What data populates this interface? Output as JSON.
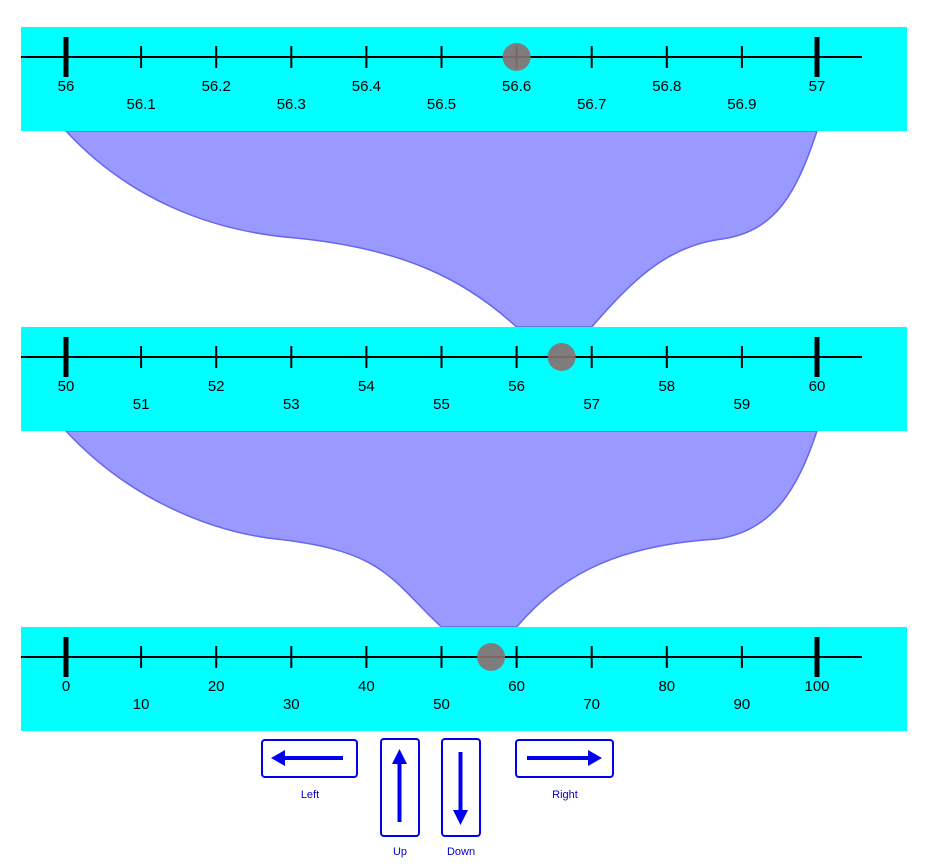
{
  "colors": {
    "band": "#00ffff",
    "funnel_fill": "#9999ff",
    "funnel_stroke": "#6666ee",
    "axis": "#000000",
    "marker": "#8c6f6f",
    "button": "#0000ee"
  },
  "number_lines": [
    {
      "name": "line-tenths",
      "min": 56,
      "max": 57,
      "labels": [
        "56",
        "56.1",
        "56.2",
        "56.3",
        "56.4",
        "56.5",
        "56.6",
        "56.7",
        "56.8",
        "56.9",
        "57"
      ],
      "marker_value": 56.6
    },
    {
      "name": "line-units",
      "min": 50,
      "max": 60,
      "labels": [
        "50",
        "51",
        "52",
        "53",
        "54",
        "55",
        "56",
        "57",
        "58",
        "59",
        "60"
      ],
      "marker_value": 56.6
    },
    {
      "name": "line-tens",
      "min": 0,
      "max": 100,
      "labels": [
        "0",
        "10",
        "20",
        "30",
        "40",
        "50",
        "60",
        "70",
        "80",
        "90",
        "100"
      ],
      "marker_value": 56.6
    }
  ],
  "controls": {
    "left_label": "Left",
    "up_label": "Up",
    "down_label": "Down",
    "right_label": "Right"
  }
}
